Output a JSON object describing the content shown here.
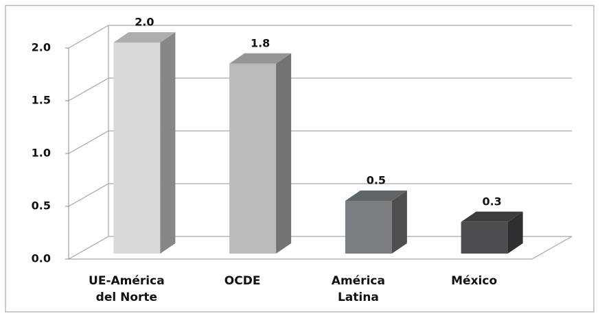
{
  "chart_data": {
    "type": "bar3d",
    "categories": [
      "UE-América\ndel Norte",
      "OCDE",
      "América\nLatina",
      "México"
    ],
    "values": [
      2.0,
      1.8,
      0.5,
      0.3
    ],
    "value_labels": [
      "2.0",
      "1.8",
      "0.5",
      "0.3"
    ],
    "colors": [
      "#d9d9d9",
      "#b9babb",
      "#7b7e81",
      "#4b4d50"
    ],
    "ylim": [
      0,
      2
    ],
    "yticks": [
      {
        "value": 0,
        "label": "0.0"
      },
      {
        "value": 0.5,
        "label": "0.5"
      },
      {
        "value": 1,
        "label": "1.0"
      },
      {
        "value": 1.5,
        "label": "1.5"
      },
      {
        "value": 2,
        "label": "2.0"
      }
    ],
    "grid": true
  }
}
